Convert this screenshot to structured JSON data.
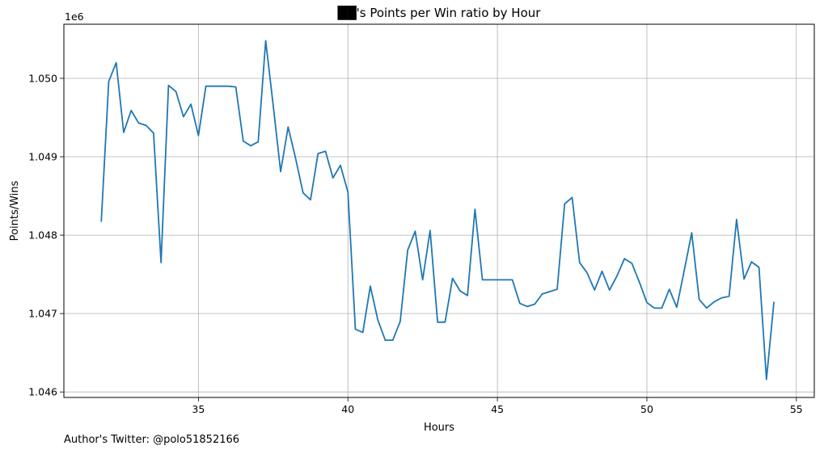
{
  "chart_data": {
    "type": "line",
    "title": "██'s Points per Win ratio by Hour",
    "xlabel": "Hours",
    "ylabel": "Points/Wins",
    "y_offset_label": "1e6",
    "xlim": [
      30.5,
      55.6
    ],
    "ylim": [
      1.04593,
      1.05069
    ],
    "x_ticks": [
      35,
      40,
      45,
      50,
      55
    ],
    "x_tick_labels": [
      "35",
      "40",
      "45",
      "50",
      "55"
    ],
    "y_ticks": [
      1.046,
      1.047,
      1.048,
      1.049,
      1.05
    ],
    "y_tick_labels": [
      "1.046",
      "1.047",
      "1.048",
      "1.049",
      "1.050"
    ],
    "grid": true,
    "line_color": "#1f77b4",
    "series": [
      {
        "x": [
          31.75,
          32.0,
          32.25,
          32.5,
          32.75,
          33.0,
          33.25,
          33.5,
          33.75,
          34.0,
          34.25,
          34.5,
          34.75,
          35.0,
          35.25,
          35.5,
          35.75,
          36.0,
          36.25,
          36.5,
          36.75,
          37.0,
          37.25,
          37.5,
          37.75,
          38.0,
          38.25,
          38.5,
          38.75,
          39.0,
          39.25,
          39.5,
          39.75,
          40.0,
          40.25,
          40.5,
          40.75,
          41.0,
          41.25,
          41.5,
          41.75,
          42.0,
          42.25,
          42.5,
          42.75,
          43.0,
          43.25,
          43.5,
          43.75,
          44.0,
          44.25,
          44.5,
          44.75,
          45.0,
          45.25,
          45.5,
          45.75,
          46.0,
          46.25,
          46.5,
          46.75,
          47.0,
          47.25,
          47.5,
          47.75,
          48.0,
          48.25,
          48.5,
          48.75,
          49.0,
          49.25,
          49.5,
          49.75,
          50.0,
          50.25,
          50.5,
          50.75,
          51.0,
          51.25,
          51.5,
          51.75,
          52.0,
          52.25,
          52.5,
          52.75,
          53.0,
          53.25,
          53.5,
          53.75,
          54.0,
          54.25
        ],
        "y": [
          1.04817,
          1.04996,
          1.0502,
          1.04931,
          1.04959,
          1.04943,
          1.0494,
          1.0493,
          1.04765,
          1.04991,
          1.04983,
          1.04951,
          1.04967,
          1.04927,
          1.0499,
          1.0499,
          1.0499,
          1.0499,
          1.04989,
          1.0492,
          1.04914,
          1.04919,
          1.05048,
          1.04966,
          1.04881,
          1.04938,
          1.04898,
          1.04854,
          1.04845,
          1.04904,
          1.04907,
          1.04873,
          1.04889,
          1.04855,
          1.0468,
          1.04676,
          1.04735,
          1.04692,
          1.04666,
          1.04666,
          1.0469,
          1.04781,
          1.04805,
          1.04743,
          1.04806,
          1.04689,
          1.04689,
          1.04745,
          1.04729,
          1.04723,
          1.04833,
          1.04743,
          1.04743,
          1.04743,
          1.04743,
          1.04743,
          1.04713,
          1.04709,
          1.04712,
          1.04725,
          1.04728,
          1.04731,
          1.0484,
          1.04848,
          1.04765,
          1.04752,
          1.0473,
          1.04754,
          1.0473,
          1.04748,
          1.0477,
          1.04764,
          1.0474,
          1.04714,
          1.04707,
          1.04707,
          1.04731,
          1.04708,
          1.04755,
          1.04803,
          1.04718,
          1.04707,
          1.04715,
          1.0472,
          1.04722,
          1.0482,
          1.04744,
          1.04766,
          1.04759,
          1.04616,
          1.04715
        ]
      }
    ]
  },
  "footer": {
    "text": "Author's Twitter: @polo51852166"
  }
}
